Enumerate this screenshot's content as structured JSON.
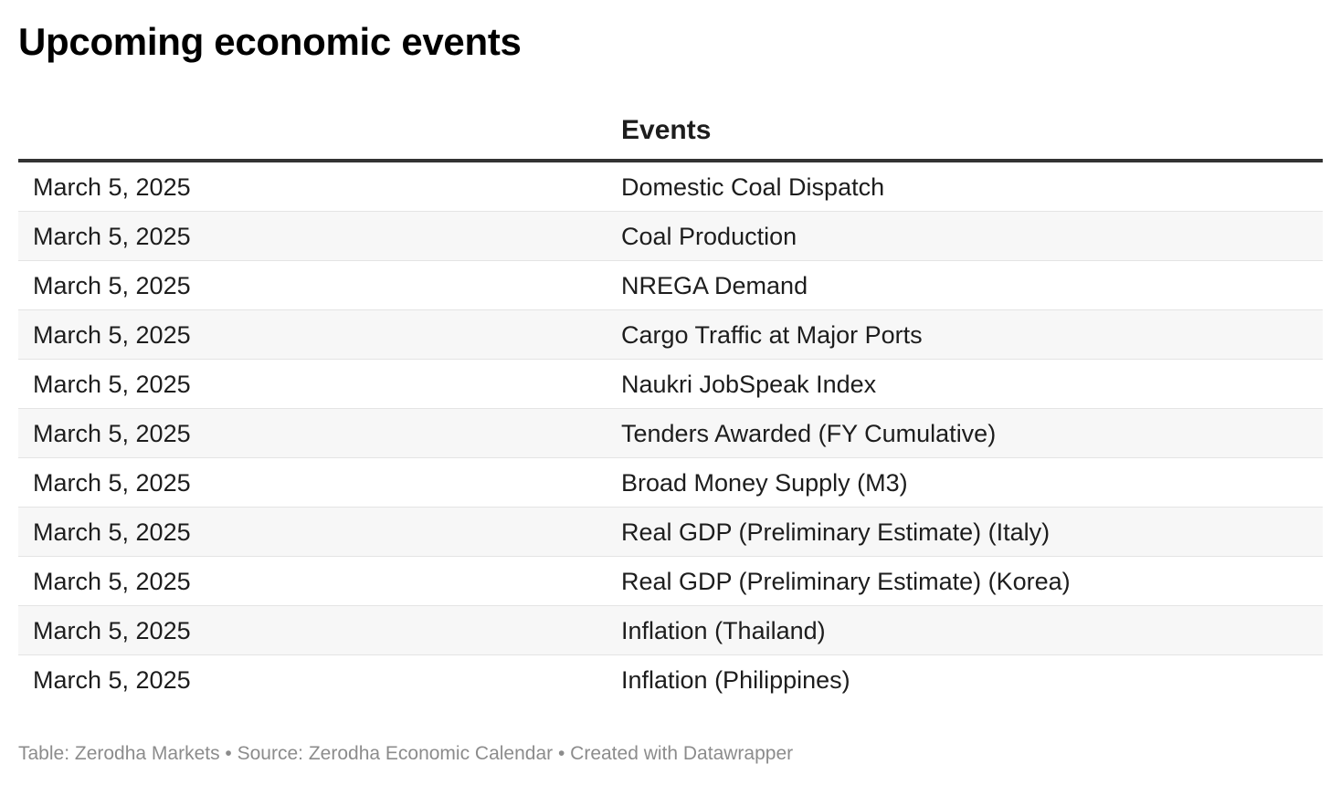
{
  "chart_data": {
    "type": "table",
    "title": "Upcoming economic events",
    "columns": [
      "",
      "Events"
    ],
    "rows": [
      {
        "date": "March 5, 2025",
        "event": "Domestic Coal Dispatch"
      },
      {
        "date": "March 5, 2025",
        "event": "Coal Production"
      },
      {
        "date": "March 5, 2025",
        "event": "NREGA Demand"
      },
      {
        "date": "March 5, 2025",
        "event": "Cargo Traffic at Major Ports"
      },
      {
        "date": "March 5, 2025",
        "event": "Naukri JobSpeak Index"
      },
      {
        "date": "March 5, 2025",
        "event": "Tenders Awarded (FY Cumulative)"
      },
      {
        "date": "March 5, 2025",
        "event": "Broad Money Supply (M3)"
      },
      {
        "date": "March 5, 2025",
        "event": "Real GDP (Preliminary Estimate) (Italy)"
      },
      {
        "date": "March 5, 2025",
        "event": "Real GDP (Preliminary Estimate) (Korea)"
      },
      {
        "date": "March 5, 2025",
        "event": "Inflation (Thailand)"
      },
      {
        "date": "March 5, 2025",
        "event": "Inflation (Philippines)"
      }
    ],
    "footer": "Table: Zerodha Markets • Source: Zerodha Economic Calendar • Created with Datawrapper",
    "colors": {
      "header_rule": "#333333",
      "row_alt": "#f7f7f7",
      "row_divider": "#e4e4e4",
      "footer_text": "#8c8c8c"
    }
  }
}
